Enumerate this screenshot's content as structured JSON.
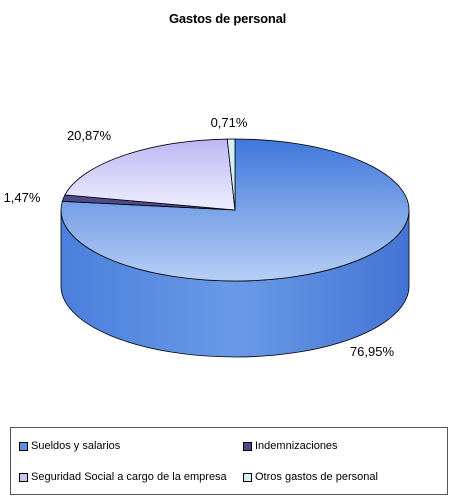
{
  "chart_data": {
    "type": "pie",
    "title": "Gastos de personal",
    "legend_position": "bottom",
    "three_d": true,
    "slices": [
      {
        "name": "Sueldos y salarios",
        "value": 76.95,
        "label": "76,95%",
        "color": "#5b8fe0"
      },
      {
        "name": "Indemnizaciones",
        "value": 1.47,
        "label": "1,47%",
        "color": "#4c4a8a"
      },
      {
        "name": "Seguridad Social a cargo de la empresa",
        "value": 20.87,
        "label": "20,87%",
        "color": "#c8c4f4"
      },
      {
        "name": "Otros gastos de personal",
        "value": 0.71,
        "label": "0,71%",
        "color": "#d4f0f4"
      }
    ]
  }
}
